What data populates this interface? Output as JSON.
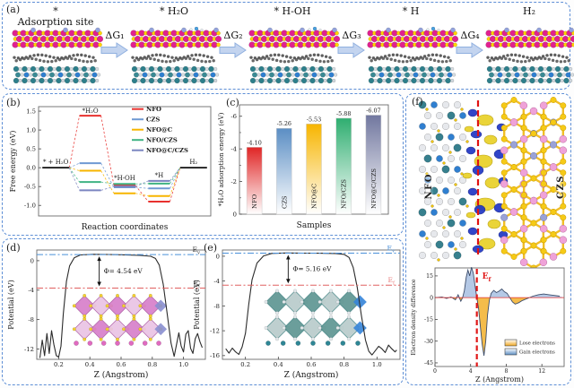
{
  "figure": {
    "border_color": "#5e8fd6",
    "background": "#fdfdfd"
  },
  "panel_a": {
    "label": "(a)",
    "stages": [
      {
        "title": "*",
        "subtitle": "Adsorption site"
      },
      {
        "title": "* H₂O"
      },
      {
        "title": "* H-OH"
      },
      {
        "title": "* H"
      },
      {
        "title": "H₂"
      }
    ],
    "arrows": [
      "ΔG₁",
      "ΔG₂",
      "ΔG₃",
      "ΔG₄"
    ]
  },
  "panel_b": {
    "label": "(b)"
  },
  "panel_c": {
    "label": "(c)"
  },
  "panel_d": {
    "label": "(d)"
  },
  "panel_e": {
    "label": "(e)"
  },
  "panel_f": {
    "label": "(f)",
    "left_material": "NFO",
    "right_material": "CZS"
  },
  "chart_data": [
    {
      "id": "b",
      "type": "line",
      "variant": "reaction-energy-diagram",
      "xlabel": "Reaction coordinates",
      "ylabel": "Free energy (eV)",
      "ylim": [
        -1.28,
        1.62
      ],
      "yticks": [
        1.5,
        1.0,
        0.5,
        0.0,
        -0.5,
        -1.0
      ],
      "stages": [
        "* + H₂O",
        "*H₂O",
        "*H-OH",
        "*H",
        "H₂"
      ],
      "reference_level_eV": 0.0,
      "legend_position": "top-right",
      "series": [
        {
          "name": "NFO",
          "color": "#e8312e",
          "values": [
            0,
            1.38,
            -0.47,
            -0.9,
            0
          ]
        },
        {
          "name": "CZS",
          "color": "#6f9ad3",
          "values": [
            0,
            0.12,
            -0.52,
            -0.55,
            0
          ]
        },
        {
          "name": "NFO@C",
          "color": "#f7b500",
          "values": [
            0,
            -0.08,
            -0.68,
            -0.75,
            0
          ]
        },
        {
          "name": "NFO/CZS",
          "color": "#3fb383",
          "values": [
            0,
            -0.38,
            -0.43,
            -0.42,
            0
          ]
        },
        {
          "name": "NFO@C/CZS",
          "color": "#7b85c0",
          "values": [
            0,
            -0.6,
            -0.5,
            -0.35,
            0
          ]
        }
      ]
    },
    {
      "id": "c",
      "type": "bar",
      "xlabel": "Samples",
      "ylabel": "*H₂O adsorption energy (eV)",
      "categories": [
        "NFO",
        "CZS",
        "NFO@C",
        "NFO/CZS",
        "NFO@C/CZS"
      ],
      "values": [
        -4.1,
        -5.26,
        -5.53,
        -5.88,
        -6.07
      ],
      "value_labels": [
        "-4.10",
        "-5.26",
        "-5.53",
        "-5.88",
        "-6.07"
      ],
      "bar_colors": [
        "#e02525",
        "#5b8ec4",
        "#f7b500",
        "#2fae70",
        "#71779f"
      ],
      "yticks": [
        0,
        -2,
        -4,
        -6
      ],
      "minor_ticks": [
        -1,
        -3,
        -5
      ],
      "ylim": [
        0,
        -6.7
      ],
      "axis_inverted": true,
      "gradient_to_white": true
    },
    {
      "id": "d",
      "type": "line",
      "variant": "planar-average-potential",
      "xlabel": "Z (Angstrom)",
      "ylabel": "Potential (eV)",
      "xticks": [
        0.2,
        0.4,
        0.6,
        0.8,
        1.0
      ],
      "yticks": [
        0,
        -4,
        -8,
        -12
      ],
      "xlim": [
        0.06,
        1.14
      ],
      "ylim": [
        -13.4,
        1.45
      ],
      "vacuum_level_eV": 0.82,
      "fermi_level_eV": -3.72,
      "work_function_label": "Φ= 4.54 eV",
      "ev_label": {
        "t": "E",
        "s": "v"
      },
      "ef_label": {
        "t": "E",
        "s": "f"
      },
      "label_color_ev": "#333333",
      "label_color_ef": "#333333",
      "arrow_x": 0.46,
      "curve": [
        [
          0.08,
          -13.2
        ],
        [
          0.095,
          -10.8
        ],
        [
          0.11,
          -12.9
        ],
        [
          0.125,
          -9.9
        ],
        [
          0.14,
          -12.6
        ],
        [
          0.155,
          -9.5
        ],
        [
          0.17,
          -11.4
        ],
        [
          0.185,
          -12.9
        ],
        [
          0.2,
          -13.1
        ],
        [
          0.215,
          -11.6
        ],
        [
          0.23,
          -7.2
        ],
        [
          0.25,
          -2.8
        ],
        [
          0.27,
          -0.7
        ],
        [
          0.3,
          0.4
        ],
        [
          0.34,
          0.78
        ],
        [
          0.42,
          0.86
        ],
        [
          0.52,
          0.84
        ],
        [
          0.62,
          0.79
        ],
        [
          0.72,
          0.72
        ],
        [
          0.79,
          0.6
        ],
        [
          0.82,
          0.3
        ],
        [
          0.845,
          -0.6
        ],
        [
          0.87,
          -3.2
        ],
        [
          0.895,
          -7.2
        ],
        [
          0.92,
          -11.2
        ],
        [
          0.94,
          -13.0
        ],
        [
          0.955,
          -11.4
        ],
        [
          0.97,
          -9.8
        ],
        [
          0.985,
          -11.6
        ],
        [
          1.0,
          -12.4
        ],
        [
          1.015,
          -10.0
        ],
        [
          1.03,
          -9.5
        ],
        [
          1.045,
          -11.9
        ],
        [
          1.06,
          -12.6
        ],
        [
          1.075,
          -10.6
        ],
        [
          1.09,
          -9.9
        ],
        [
          1.105,
          -11.0
        ],
        [
          1.12,
          -11.8
        ]
      ]
    },
    {
      "id": "e",
      "type": "line",
      "variant": "planar-average-potential",
      "xlabel": "Z (Angstrom)",
      "ylabel": "Potential (eV)",
      "xticks": [
        0.2,
        0.4,
        0.6,
        0.8,
        1.0
      ],
      "yticks": [
        0,
        -4,
        -8,
        -12,
        -16
      ],
      "xlim": [
        0.06,
        1.14
      ],
      "ylim": [
        -16.6,
        1.0
      ],
      "vacuum_level_eV": 0.5,
      "fermi_level_eV": -4.66,
      "work_function_label": "Φ= 5.16 eV",
      "ev_label": {
        "t": "E",
        "s": "v"
      },
      "ef_label": {
        "t": "E",
        "s": "f"
      },
      "label_color_ev": "#4a90d9",
      "label_color_ef": "#e87d7d",
      "arrow_x": 0.46,
      "curve": [
        [
          0.08,
          -14.9
        ],
        [
          0.1,
          -15.6
        ],
        [
          0.12,
          -14.8
        ],
        [
          0.14,
          -15.4
        ],
        [
          0.16,
          -15.8
        ],
        [
          0.18,
          -14.6
        ],
        [
          0.2,
          -12.4
        ],
        [
          0.22,
          -7.8
        ],
        [
          0.24,
          -3.8
        ],
        [
          0.27,
          -1.1
        ],
        [
          0.31,
          0.05
        ],
        [
          0.36,
          0.45
        ],
        [
          0.45,
          0.52
        ],
        [
          0.55,
          0.5
        ],
        [
          0.65,
          0.48
        ],
        [
          0.75,
          0.44
        ],
        [
          0.8,
          0.3
        ],
        [
          0.83,
          -0.2
        ],
        [
          0.855,
          -1.8
        ],
        [
          0.88,
          -5.0
        ],
        [
          0.905,
          -9.5
        ],
        [
          0.93,
          -13.5
        ],
        [
          0.95,
          -15.3
        ],
        [
          0.97,
          -15.9
        ],
        [
          0.99,
          -15.2
        ],
        [
          1.01,
          -14.5
        ],
        [
          1.03,
          -14.9
        ],
        [
          1.05,
          -15.5
        ],
        [
          1.07,
          -14.3
        ],
        [
          1.09,
          -14.9
        ],
        [
          1.11,
          -15.4
        ],
        [
          1.12,
          -15.1
        ]
      ]
    },
    {
      "id": "f",
      "type": "area",
      "variant": "electron-density-difference",
      "xlabel": "Z (Angstrom)",
      "ylabel": "Electron density difference",
      "xticks": [
        0,
        4,
        8,
        12
      ],
      "yticks": [
        15,
        0,
        -15,
        -30,
        -45
      ],
      "xlim": [
        0,
        14.5
      ],
      "ylim": [
        -47.5,
        20.5
      ],
      "fermi_line_x": 4.7,
      "ef_label": {
        "t": "E",
        "s": "f"
      },
      "ef_color": "#e01818",
      "legend": [
        {
          "label": "Lose electrons",
          "color": "#f0a820"
        },
        {
          "label": "Gain electrons",
          "color": "#5b8ec4"
        }
      ],
      "curve": [
        [
          0,
          0
        ],
        [
          0.8,
          0.5
        ],
        [
          1.3,
          -0.5
        ],
        [
          1.8,
          0.5
        ],
        [
          2.3,
          -1.5
        ],
        [
          2.6,
          2
        ],
        [
          2.9,
          -2.5
        ],
        [
          3.1,
          0
        ],
        [
          3.3,
          5
        ],
        [
          3.5,
          14
        ],
        [
          3.7,
          19
        ],
        [
          3.9,
          15
        ],
        [
          4.1,
          21
        ],
        [
          4.3,
          17
        ],
        [
          4.5,
          8
        ],
        [
          4.7,
          0
        ],
        [
          4.9,
          -8
        ],
        [
          5.1,
          -20
        ],
        [
          5.3,
          -32
        ],
        [
          5.5,
          -40
        ],
        [
          5.7,
          -30
        ],
        [
          5.9,
          -12
        ],
        [
          6.1,
          -2
        ],
        [
          6.3,
          3
        ],
        [
          6.6,
          5
        ],
        [
          6.9,
          3.5
        ],
        [
          7.2,
          4.5
        ],
        [
          7.5,
          6
        ],
        [
          7.8,
          4
        ],
        [
          8.1,
          3
        ],
        [
          8.4,
          0
        ],
        [
          8.7,
          -3
        ],
        [
          9.0,
          -4.5
        ],
        [
          9.4,
          -3.5
        ],
        [
          9.8,
          -2
        ],
        [
          10.4,
          -0.5
        ],
        [
          11.0,
          1
        ],
        [
          11.6,
          2
        ],
        [
          12.2,
          2.5
        ],
        [
          12.8,
          2
        ],
        [
          13.4,
          1.5
        ],
        [
          14.0,
          1
        ]
      ]
    }
  ]
}
